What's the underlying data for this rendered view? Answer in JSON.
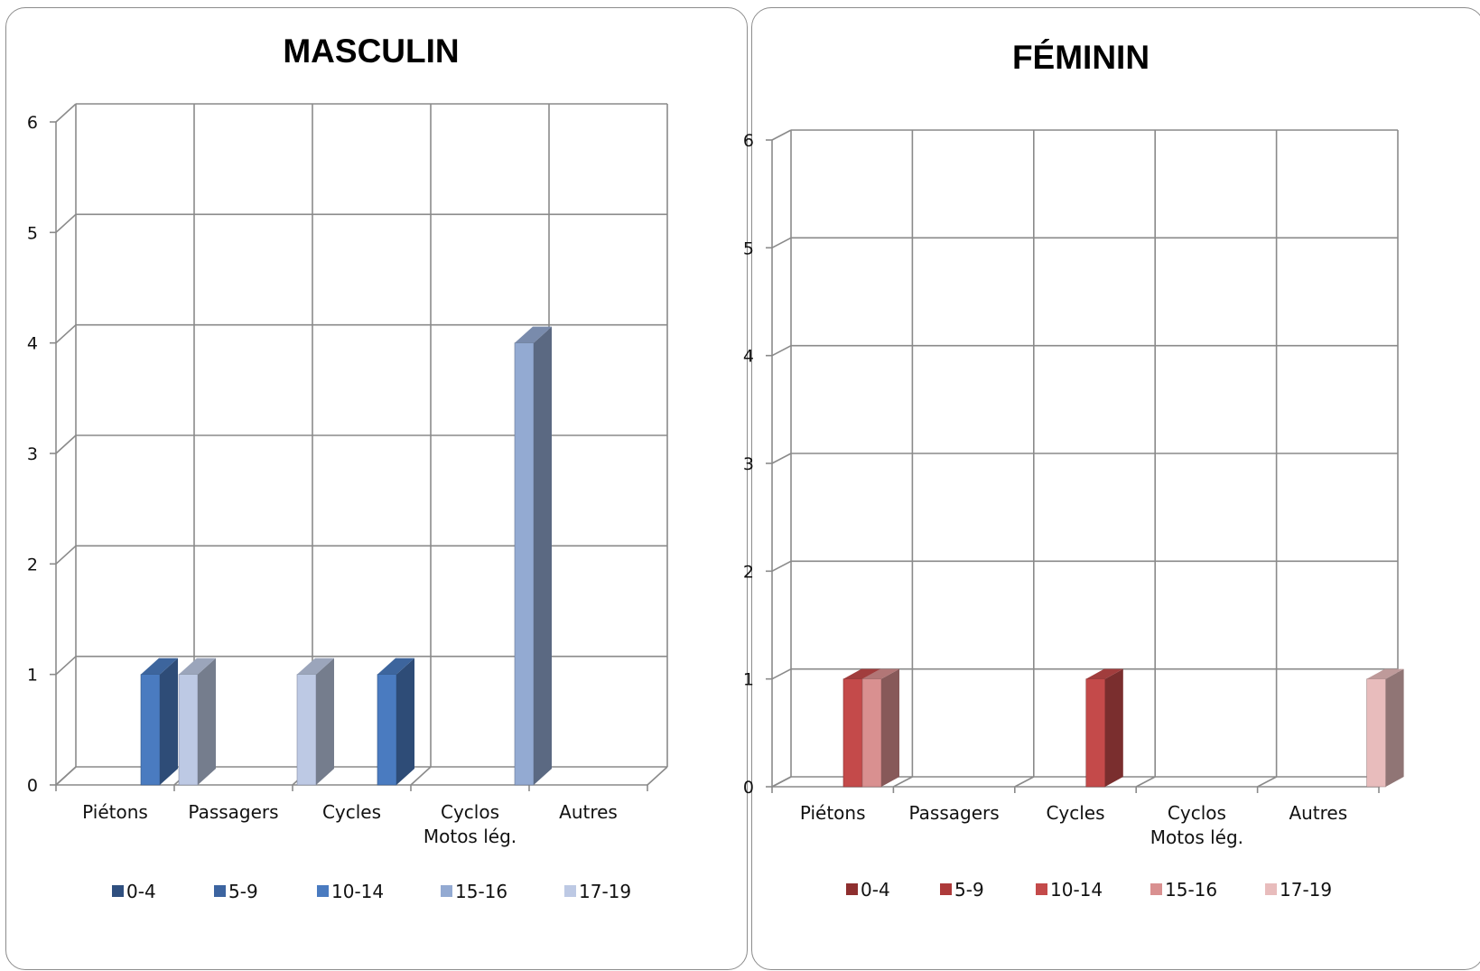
{
  "chart_data": [
    {
      "type": "bar",
      "title": "MASCULIN",
      "categories": [
        [
          "Piétons"
        ],
        [
          "Passagers"
        ],
        [
          "Cycles"
        ],
        [
          "Cyclos",
          "Motos lég."
        ],
        [
          "Autres"
        ]
      ],
      "ylim": [
        0,
        6
      ],
      "yticks": [
        0,
        1,
        2,
        3,
        4,
        5,
        6
      ],
      "grid": true,
      "legend_position": "bottom",
      "series": [
        {
          "name": "0-4",
          "color": "#2f4f7f",
          "values": [
            0,
            0,
            0,
            0,
            0
          ]
        },
        {
          "name": "5-9",
          "color": "#3c64a0",
          "values": [
            0,
            0,
            0,
            0,
            0
          ]
        },
        {
          "name": "10-14",
          "color": "#4a7bc0",
          "values": [
            1,
            0,
            1,
            0,
            0
          ]
        },
        {
          "name": "15-16",
          "color": "#93aad2",
          "values": [
            0,
            0,
            0,
            4,
            0
          ]
        },
        {
          "name": "17-19",
          "color": "#bdc9e4",
          "values": [
            1,
            1,
            0,
            0,
            0
          ]
        }
      ]
    },
    {
      "type": "bar",
      "title": "FÉMININ",
      "categories": [
        [
          "Piétons"
        ],
        [
          "Passagers"
        ],
        [
          "Cycles"
        ],
        [
          "Cyclos",
          "Motos lég."
        ],
        [
          "Autres"
        ]
      ],
      "ylim": [
        0,
        6
      ],
      "yticks": [
        0,
        1,
        2,
        3,
        4,
        5,
        6
      ],
      "grid": true,
      "legend_position": "bottom",
      "series": [
        {
          "name": "0-4",
          "color": "#8e2f2f",
          "values": [
            0,
            0,
            0,
            0,
            0
          ]
        },
        {
          "name": "5-9",
          "color": "#ad3a3a",
          "values": [
            0,
            0,
            0,
            0,
            0
          ]
        },
        {
          "name": "10-14",
          "color": "#c44a4a",
          "values": [
            1,
            0,
            1,
            0,
            0
          ]
        },
        {
          "name": "15-16",
          "color": "#d99090",
          "values": [
            1,
            0,
            0,
            0,
            0
          ]
        },
        {
          "name": "17-19",
          "color": "#e8bcbc",
          "values": [
            0,
            0,
            0,
            0,
            1
          ]
        }
      ]
    }
  ]
}
